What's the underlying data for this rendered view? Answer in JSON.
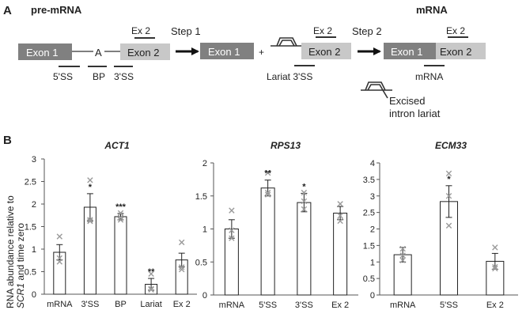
{
  "panel_a": {
    "label": "A",
    "premrna_title": "pre-mRNA",
    "mrna_title": "mRNA",
    "exon1": "Exon 1",
    "exon2": "Exon 2",
    "branch_a": "A",
    "plus": "+",
    "step1": "Step 1",
    "step2": "Step 2",
    "probes": {
      "ss5": "5'SS",
      "bp": "BP",
      "ss3": "3'SS",
      "ex2": "Ex 2",
      "lariat_3ss": "Lariat 3'SS",
      "mrna": "mRNA"
    },
    "excised_line1": "Excised",
    "excised_line2": "intron lariat"
  },
  "panel_b": {
    "label": "B",
    "ylabel_line1": "RNA abundance relative to",
    "ylabel_line2_italic": "SCR1",
    "ylabel_line2_rest": " and time zero"
  },
  "chart_data": [
    {
      "type": "bar",
      "title": "ACT1",
      "categories": [
        "mRNA",
        "3'SS",
        "BP",
        "Lariat",
        "Ex 2"
      ],
      "values": [
        0.93,
        1.93,
        1.72,
        0.22,
        0.76
      ],
      "errors": [
        0.17,
        0.3,
        0.07,
        0.13,
        0.15
      ],
      "points": [
        [
          1.28,
          0.8,
          0.72
        ],
        [
          2.53,
          1.62,
          1.65
        ],
        [
          1.8,
          1.65,
          1.7
        ],
        [
          0.45,
          0.12,
          0.1
        ],
        [
          1.15,
          0.6,
          0.55
        ]
      ],
      "significance": [
        "",
        "*",
        "***",
        "**",
        ""
      ],
      "yticks": [
        0,
        0.5,
        1,
        1.5,
        2,
        2.5,
        3
      ],
      "ytick_labels": [
        "0",
        "0.5",
        "1",
        "1.5",
        "2",
        "2.5",
        "3"
      ],
      "ylim": [
        0,
        3
      ]
    },
    {
      "type": "bar",
      "title": "RPS13",
      "categories": [
        "mRNA",
        "5'SS",
        "3'SS",
        "Ex 2"
      ],
      "values": [
        1.0,
        1.62,
        1.4,
        1.24
      ],
      "errors": [
        0.14,
        0.12,
        0.14,
        0.1
      ],
      "points": [
        [
          1.28,
          0.98,
          0.86
        ],
        [
          1.85,
          1.55,
          1.52
        ],
        [
          1.55,
          1.42,
          1.3
        ],
        [
          1.38,
          1.2,
          1.12
        ]
      ],
      "significance": [
        "",
        "**",
        "*",
        ""
      ],
      "yticks": [
        0,
        0.5,
        1,
        1.5,
        2
      ],
      "ytick_labels": [
        "0",
        "0.5",
        "1",
        "1.5",
        "2"
      ],
      "ylim": [
        0,
        2
      ]
    },
    {
      "type": "bar",
      "title": "ECM33",
      "categories": [
        "mRNA",
        "5'SS",
        "Ex 2"
      ],
      "values": [
        1.22,
        2.83,
        1.02
      ],
      "errors": [
        0.22,
        0.48,
        0.24
      ],
      "points": [
        [
          1.4,
          1.2,
          1.05
        ],
        [
          3.68,
          3.0,
          2.1
        ],
        [
          1.44,
          0.85,
          0.8
        ]
      ],
      "significance": [
        "",
        "*",
        ""
      ],
      "yticks": [
        0,
        0.5,
        1,
        1.5,
        2,
        2.5,
        3,
        3.5,
        4
      ],
      "ytick_labels": [
        "0",
        "0.5",
        "1",
        "1.5",
        "2",
        "2.5",
        "3",
        "3.5",
        "4"
      ],
      "ylim": [
        0,
        4
      ]
    }
  ]
}
